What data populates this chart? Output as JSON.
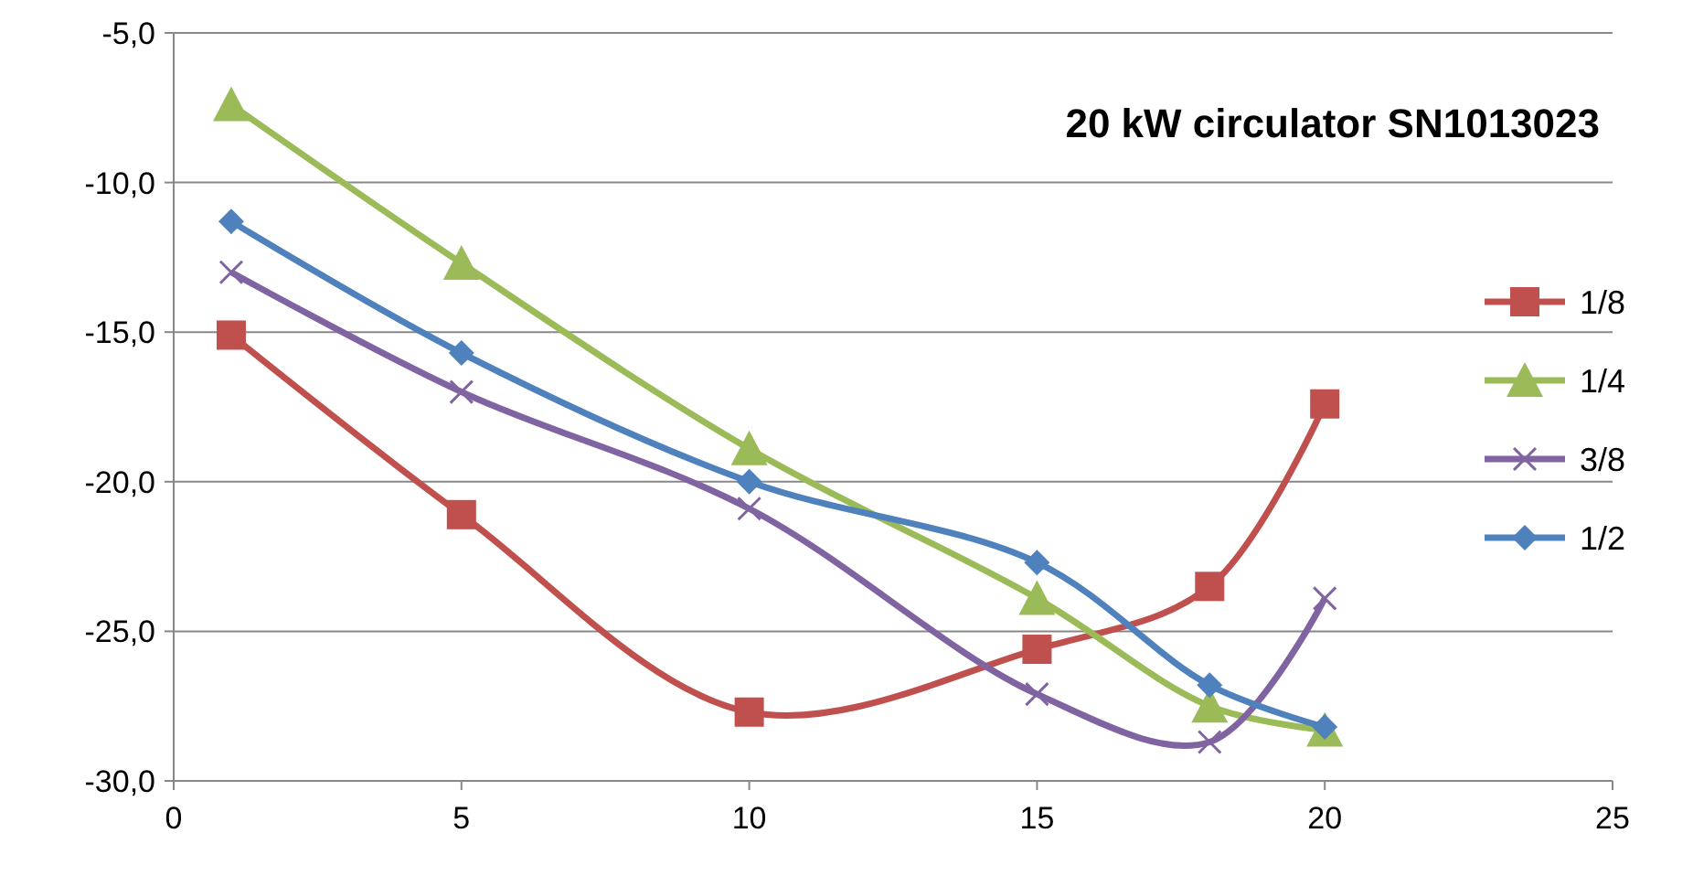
{
  "chart_data": {
    "type": "line",
    "title": "20 kW circulator SN1013023",
    "x": [
      1,
      5,
      10,
      15,
      18,
      20
    ],
    "series": [
      {
        "name": "1/8",
        "color": "#c0504d",
        "marker": "square",
        "values": [
          -15.1,
          -21.1,
          -27.7,
          -25.6,
          -23.5,
          -17.4
        ]
      },
      {
        "name": "1/4",
        "color": "#9bbb59",
        "marker": "triangle",
        "values": [
          -7.4,
          -12.7,
          -18.9,
          -23.9,
          -27.5,
          -28.3
        ]
      },
      {
        "name": "3/8",
        "color": "#8064a2",
        "marker": "cross",
        "values": [
          -13.0,
          -17.0,
          -20.9,
          -27.1,
          -28.7,
          -23.9
        ]
      },
      {
        "name": "1/2",
        "color": "#4f81bd",
        "marker": "diamond",
        "values": [
          -11.3,
          -15.7,
          -20.0,
          -22.7,
          -26.8,
          -28.2
        ]
      }
    ],
    "xlim": [
      0,
      25
    ],
    "xticks": [
      0,
      5,
      10,
      15,
      20,
      25
    ],
    "ylim": [
      -30,
      -5
    ],
    "yticks": [
      {
        "value": -30,
        "label": "-30,0"
      },
      {
        "value": -25,
        "label": "-25,0"
      },
      {
        "value": -20,
        "label": "-20,0"
      },
      {
        "value": -15,
        "label": "-15,0"
      },
      {
        "value": -10,
        "label": "-10,0"
      },
      {
        "value": -5,
        "label": "-5,0"
      }
    ],
    "grid": "y",
    "legend": "right",
    "line_style": "solid"
  }
}
